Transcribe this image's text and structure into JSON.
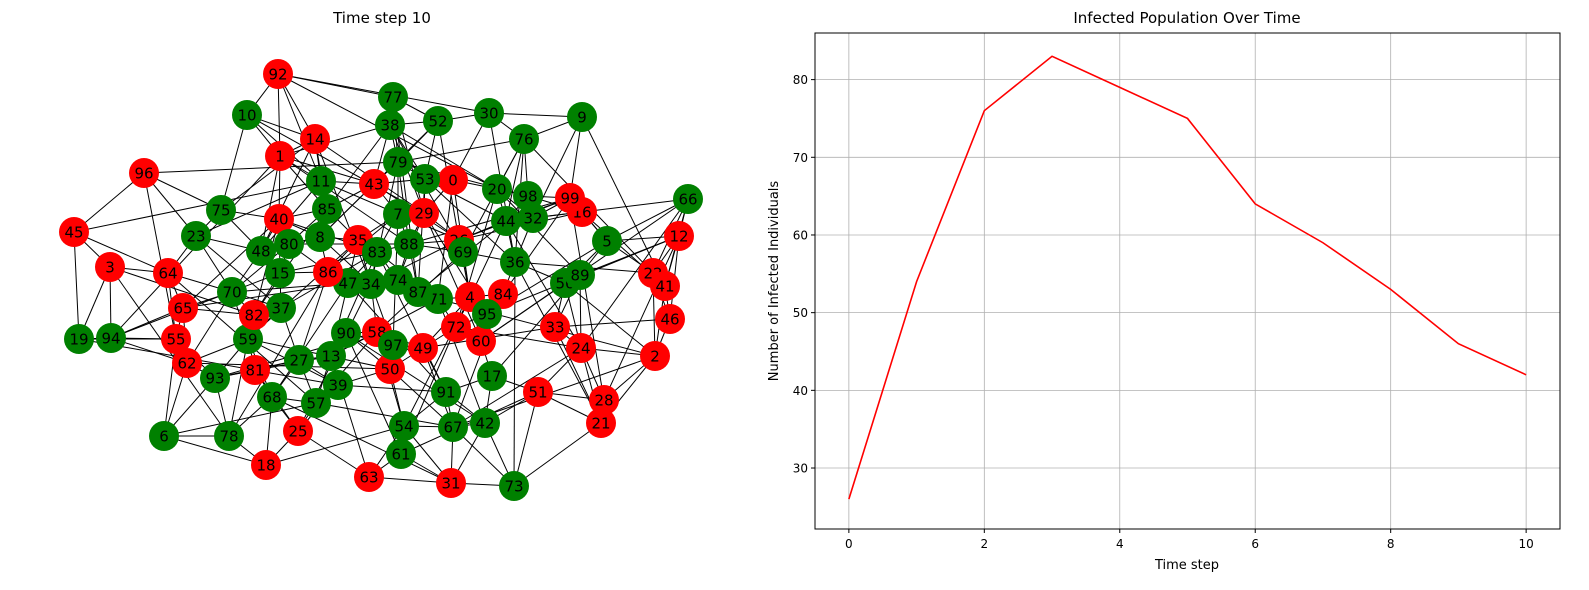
{
  "network_panel": {
    "title": "Time step 10",
    "colors": {
      "infected": "#ff0000",
      "healthy": "#008000",
      "edge": "#000000",
      "label": "#000000"
    },
    "nodes": [
      {
        "id": "0",
        "state": "infected"
      },
      {
        "id": "1",
        "state": "infected"
      },
      {
        "id": "2",
        "state": "infected"
      },
      {
        "id": "3",
        "state": "infected"
      },
      {
        "id": "4",
        "state": "infected"
      },
      {
        "id": "5",
        "state": "healthy"
      },
      {
        "id": "6",
        "state": "healthy"
      },
      {
        "id": "7",
        "state": "healthy"
      },
      {
        "id": "8",
        "state": "healthy"
      },
      {
        "id": "9",
        "state": "healthy"
      },
      {
        "id": "10",
        "state": "healthy"
      },
      {
        "id": "11",
        "state": "healthy"
      },
      {
        "id": "12",
        "state": "infected"
      },
      {
        "id": "13",
        "state": "healthy"
      },
      {
        "id": "14",
        "state": "infected"
      },
      {
        "id": "15",
        "state": "healthy"
      },
      {
        "id": "16",
        "state": "infected"
      },
      {
        "id": "17",
        "state": "healthy"
      },
      {
        "id": "18",
        "state": "infected"
      },
      {
        "id": "19",
        "state": "healthy"
      },
      {
        "id": "20",
        "state": "healthy"
      },
      {
        "id": "21",
        "state": "infected"
      },
      {
        "id": "22",
        "state": "infected"
      },
      {
        "id": "23",
        "state": "healthy"
      },
      {
        "id": "24",
        "state": "infected"
      },
      {
        "id": "25",
        "state": "infected"
      },
      {
        "id": "26",
        "state": "infected"
      },
      {
        "id": "27",
        "state": "healthy"
      },
      {
        "id": "28",
        "state": "infected"
      },
      {
        "id": "29",
        "state": "infected"
      },
      {
        "id": "30",
        "state": "healthy"
      },
      {
        "id": "31",
        "state": "infected"
      },
      {
        "id": "32",
        "state": "healthy"
      },
      {
        "id": "33",
        "state": "infected"
      },
      {
        "id": "34",
        "state": "healthy"
      },
      {
        "id": "35",
        "state": "infected"
      },
      {
        "id": "36",
        "state": "healthy"
      },
      {
        "id": "37",
        "state": "healthy"
      },
      {
        "id": "38",
        "state": "healthy"
      },
      {
        "id": "39",
        "state": "healthy"
      },
      {
        "id": "40",
        "state": "infected"
      },
      {
        "id": "41",
        "state": "infected"
      },
      {
        "id": "42",
        "state": "healthy"
      },
      {
        "id": "43",
        "state": "infected"
      },
      {
        "id": "44",
        "state": "healthy"
      },
      {
        "id": "45",
        "state": "infected"
      },
      {
        "id": "46",
        "state": "infected"
      },
      {
        "id": "47",
        "state": "healthy"
      },
      {
        "id": "48",
        "state": "healthy"
      },
      {
        "id": "49",
        "state": "infected"
      },
      {
        "id": "50",
        "state": "infected"
      },
      {
        "id": "51",
        "state": "infected"
      },
      {
        "id": "52",
        "state": "healthy"
      },
      {
        "id": "53",
        "state": "healthy"
      },
      {
        "id": "54",
        "state": "healthy"
      },
      {
        "id": "55",
        "state": "infected"
      },
      {
        "id": "56",
        "state": "healthy"
      },
      {
        "id": "57",
        "state": "healthy"
      },
      {
        "id": "58",
        "state": "infected"
      },
      {
        "id": "59",
        "state": "healthy"
      },
      {
        "id": "60",
        "state": "infected"
      },
      {
        "id": "61",
        "state": "healthy"
      },
      {
        "id": "62",
        "state": "infected"
      },
      {
        "id": "63",
        "state": "infected"
      },
      {
        "id": "64",
        "state": "infected"
      },
      {
        "id": "65",
        "state": "infected"
      },
      {
        "id": "66",
        "state": "healthy"
      },
      {
        "id": "67",
        "state": "healthy"
      },
      {
        "id": "68",
        "state": "healthy"
      },
      {
        "id": "69",
        "state": "healthy"
      },
      {
        "id": "70",
        "state": "healthy"
      },
      {
        "id": "71",
        "state": "healthy"
      },
      {
        "id": "72",
        "state": "infected"
      },
      {
        "id": "73",
        "state": "healthy"
      },
      {
        "id": "74",
        "state": "healthy"
      },
      {
        "id": "75",
        "state": "healthy"
      },
      {
        "id": "76",
        "state": "healthy"
      },
      {
        "id": "77",
        "state": "healthy"
      },
      {
        "id": "78",
        "state": "healthy"
      },
      {
        "id": "79",
        "state": "healthy"
      },
      {
        "id": "80",
        "state": "healthy"
      },
      {
        "id": "81",
        "state": "infected"
      },
      {
        "id": "82",
        "state": "infected"
      },
      {
        "id": "83",
        "state": "healthy"
      },
      {
        "id": "84",
        "state": "infected"
      },
      {
        "id": "85",
        "state": "healthy"
      },
      {
        "id": "86",
        "state": "infected"
      },
      {
        "id": "87",
        "state": "healthy"
      },
      {
        "id": "88",
        "state": "healthy"
      },
      {
        "id": "89",
        "state": "healthy"
      },
      {
        "id": "90",
        "state": "healthy"
      },
      {
        "id": "91",
        "state": "healthy"
      },
      {
        "id": "92",
        "state": "infected"
      },
      {
        "id": "93",
        "state": "healthy"
      },
      {
        "id": "94",
        "state": "healthy"
      },
      {
        "id": "95",
        "state": "healthy"
      },
      {
        "id": "96",
        "state": "infected"
      },
      {
        "id": "97",
        "state": "healthy"
      },
      {
        "id": "98",
        "state": "healthy"
      },
      {
        "id": "99",
        "state": "infected"
      }
    ]
  },
  "chart_data": {
    "type": "line",
    "title": "Infected Population Over Time",
    "xlabel": "Time step",
    "ylabel": "Number of Infected Individuals",
    "x": [
      0,
      1,
      2,
      3,
      4,
      5,
      6,
      7,
      8,
      9,
      10
    ],
    "series": [
      {
        "values": [
          26,
          54,
          76,
          83,
          79,
          75,
          64,
          59,
          53,
          46,
          42
        ],
        "color": "#ff0000"
      }
    ],
    "xlim": [
      -0.5,
      10.5
    ],
    "ylim": [
      22.15,
      86.0
    ],
    "xticks": [
      0,
      2,
      4,
      6,
      8,
      10
    ],
    "yticks": [
      30,
      40,
      50,
      60,
      70,
      80
    ],
    "grid": true,
    "colors": {
      "axes": "#000000",
      "grid": "#b0b0b0"
    }
  }
}
